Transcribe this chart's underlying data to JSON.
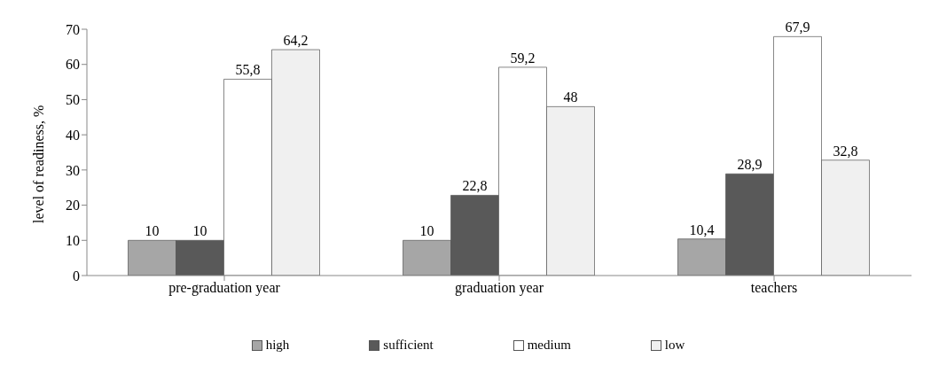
{
  "chart_data": {
    "type": "bar",
    "ylabel": "level of readiness, %",
    "categories": [
      "pre-graduation year",
      "graduation year",
      "teachers"
    ],
    "series": [
      {
        "name": "high",
        "color": "#a6a6a6",
        "values": [
          10,
          10,
          10.4
        ],
        "value_labels": [
          "10",
          "10",
          "10,4"
        ]
      },
      {
        "name": "sufficient",
        "color": "#595959",
        "values": [
          10,
          22.8,
          28.9
        ],
        "value_labels": [
          "10",
          "22,8",
          "28,9"
        ]
      },
      {
        "name": "medium",
        "color": "#ffffff",
        "values": [
          55.8,
          59.2,
          67.9
        ],
        "value_labels": [
          "55,8",
          "59,2",
          "67,9"
        ]
      },
      {
        "name": "low",
        "color": "#f0f0f0",
        "values": [
          64.2,
          48,
          32.8
        ],
        "value_labels": [
          "64,2",
          "48",
          "32,8"
        ]
      }
    ],
    "ylim": [
      0,
      70
    ],
    "yticks": [
      0,
      10,
      20,
      30,
      40,
      50,
      60,
      70
    ],
    "legend": "bottom"
  }
}
